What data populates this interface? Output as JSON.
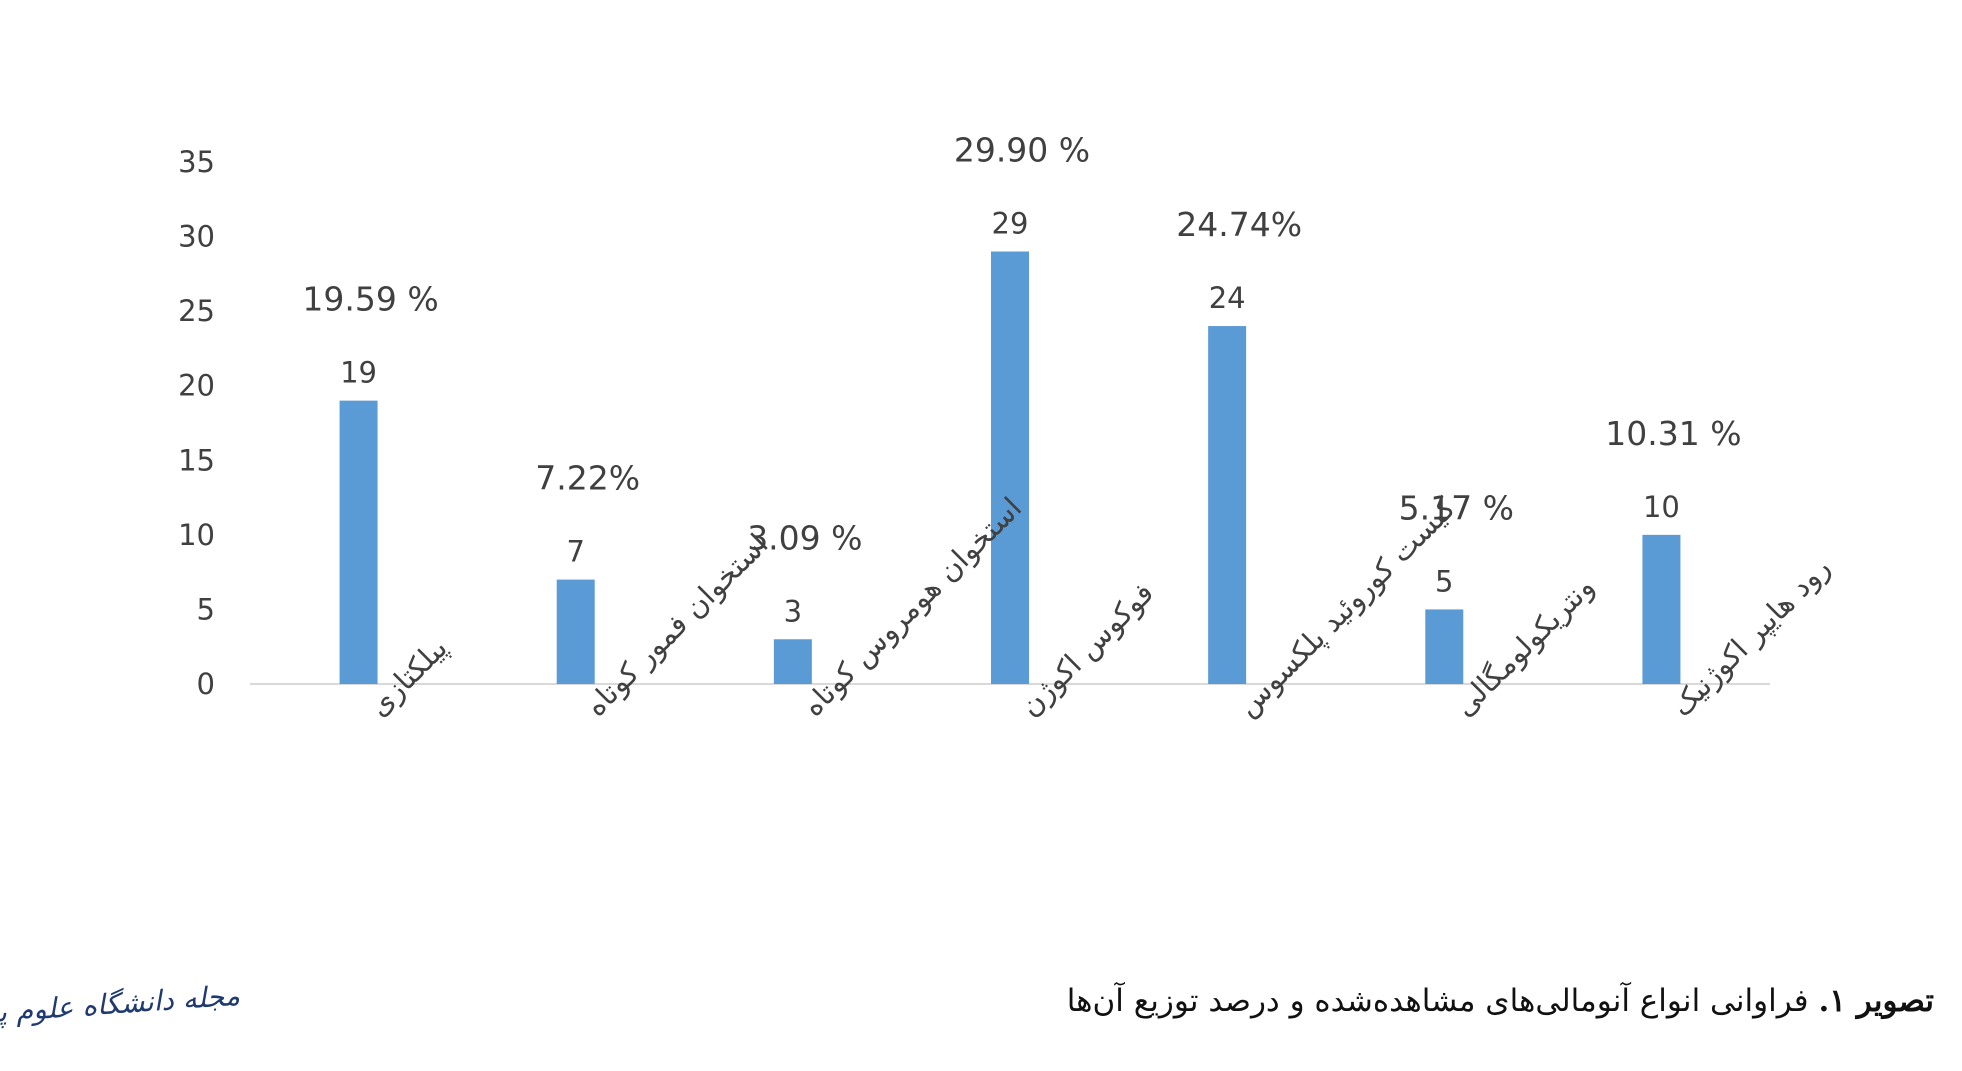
{
  "chart_data": {
    "type": "bar",
    "categories": [
      "پیلکتازی",
      "استخوان فمور کوتاه",
      "استخوان هومروس کوتاه",
      "فوکوس اکوژن",
      "کیست کوروئید پلکسوس",
      "ونتریکولومگالی",
      "رود هایپر اکوژنیک"
    ],
    "values": [
      19,
      7,
      3,
      29,
      24,
      5,
      10
    ],
    "percent_labels": [
      "19.59 %",
      "7.22%",
      "3.09 %",
      "29.90 %",
      "24.74%",
      "5.17 %",
      "10.31 %"
    ],
    "yticks": [
      "0",
      "5",
      "10",
      "15",
      "20",
      "25",
      "30",
      "35"
    ],
    "ylim": [
      0,
      35
    ],
    "grid": false,
    "bar_color": "#5B9BD5",
    "axis_color": "#D9D9D9"
  },
  "caption": {
    "label": "تصویر ۱.",
    "text": "فراوانی انواع آنومالی‌های مشاهده‌شده و درصد توزیع آن‌ها"
  },
  "logo": {
    "text": "مجله دانشگاه علوم پزشکی گیلان"
  }
}
